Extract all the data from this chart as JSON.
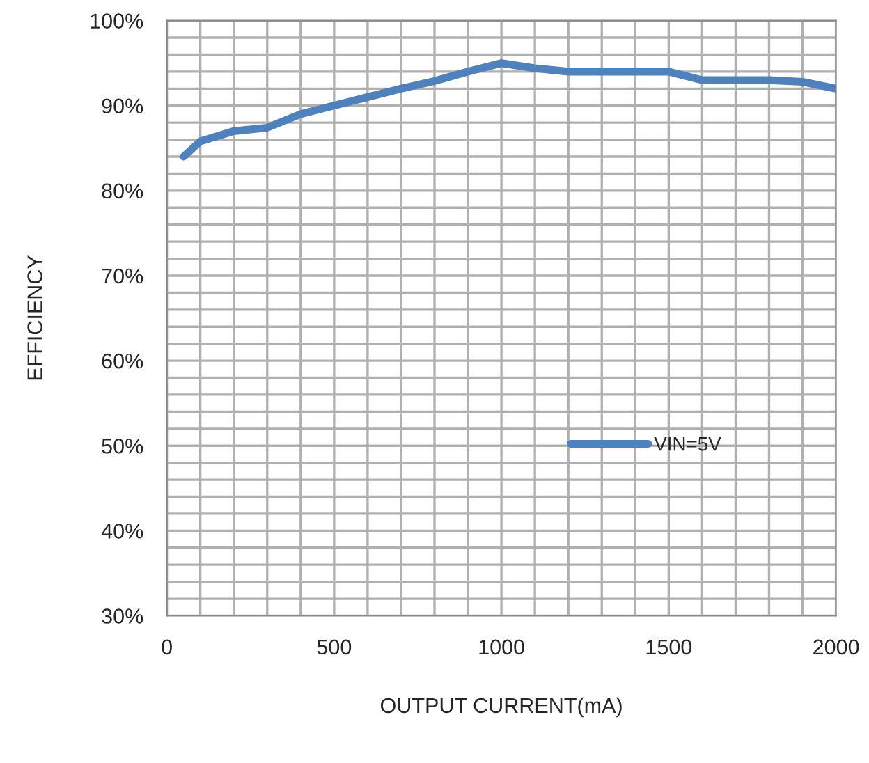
{
  "chart_data": {
    "type": "line",
    "xlabel": "OUTPUT CURRENT(mA)",
    "ylabel": "EFFICIENCY",
    "x": [
      50,
      100,
      200,
      300,
      400,
      500,
      600,
      700,
      800,
      900,
      1000,
      1100,
      1200,
      1300,
      1400,
      1500,
      1600,
      1700,
      1800,
      1900,
      2000
    ],
    "series": [
      {
        "name": "VIN=5V",
        "color": "#4f81bd",
        "values": [
          84,
          85.8,
          87,
          87.4,
          89,
          90,
          91,
          92,
          92.9,
          94,
          95,
          94.4,
          94,
          94,
          94,
          94,
          93,
          93,
          93,
          92.8,
          92
        ]
      }
    ],
    "xlim": [
      0,
      2000
    ],
    "xticks": [
      0,
      {
        "value": 100,
        "label": null
      },
      {
        "value": 200,
        "label": null
      },
      {
        "value": 300,
        "label": null
      },
      {
        "value": 400,
        "label": null
      },
      500,
      {
        "value": 600,
        "label": null
      },
      {
        "value": 700,
        "label": null
      },
      {
        "value": 800,
        "label": null
      },
      {
        "value": 900,
        "label": null
      },
      1000,
      {
        "value": 1100,
        "label": null
      },
      {
        "value": 1200,
        "label": null
      },
      {
        "value": 1300,
        "label": null
      },
      {
        "value": 1400,
        "label": null
      },
      1500,
      {
        "value": 1600,
        "label": null
      },
      {
        "value": 1700,
        "label": null
      },
      {
        "value": 1800,
        "label": null
      },
      {
        "value": 1900,
        "label": null
      },
      2000
    ],
    "ylim": [
      30,
      100
    ],
    "yticks": [
      {
        "value": 30,
        "label": "30%"
      },
      {
        "value": 32,
        "label": null
      },
      {
        "value": 34,
        "label": null
      },
      {
        "value": 36,
        "label": null
      },
      {
        "value": 38,
        "label": null
      },
      {
        "value": 40,
        "label": "40%"
      },
      {
        "value": 42,
        "label": null
      },
      {
        "value": 44,
        "label": null
      },
      {
        "value": 46,
        "label": null
      },
      {
        "value": 48,
        "label": null
      },
      {
        "value": 50,
        "label": "50%"
      },
      {
        "value": 52,
        "label": null
      },
      {
        "value": 54,
        "label": null
      },
      {
        "value": 56,
        "label": null
      },
      {
        "value": 58,
        "label": null
      },
      {
        "value": 60,
        "label": "60%"
      },
      {
        "value": 62,
        "label": null
      },
      {
        "value": 64,
        "label": null
      },
      {
        "value": 66,
        "label": null
      },
      {
        "value": 68,
        "label": null
      },
      {
        "value": 70,
        "label": "70%"
      },
      {
        "value": 72,
        "label": null
      },
      {
        "value": 74,
        "label": null
      },
      {
        "value": 76,
        "label": null
      },
      {
        "value": 78,
        "label": null
      },
      {
        "value": 80,
        "label": "80%"
      },
      {
        "value": 82,
        "label": null
      },
      {
        "value": 84,
        "label": null
      },
      {
        "value": 86,
        "label": null
      },
      {
        "value": 88,
        "label": null
      },
      {
        "value": 90,
        "label": "90%"
      },
      {
        "value": 92,
        "label": null
      },
      {
        "value": 94,
        "label": null
      },
      {
        "value": 96,
        "label": null
      },
      {
        "value": 98,
        "label": null
      },
      {
        "value": 100,
        "label": "100%"
      }
    ],
    "grid": true,
    "legend": "right",
    "marker": "none",
    "line_style": "solid"
  }
}
